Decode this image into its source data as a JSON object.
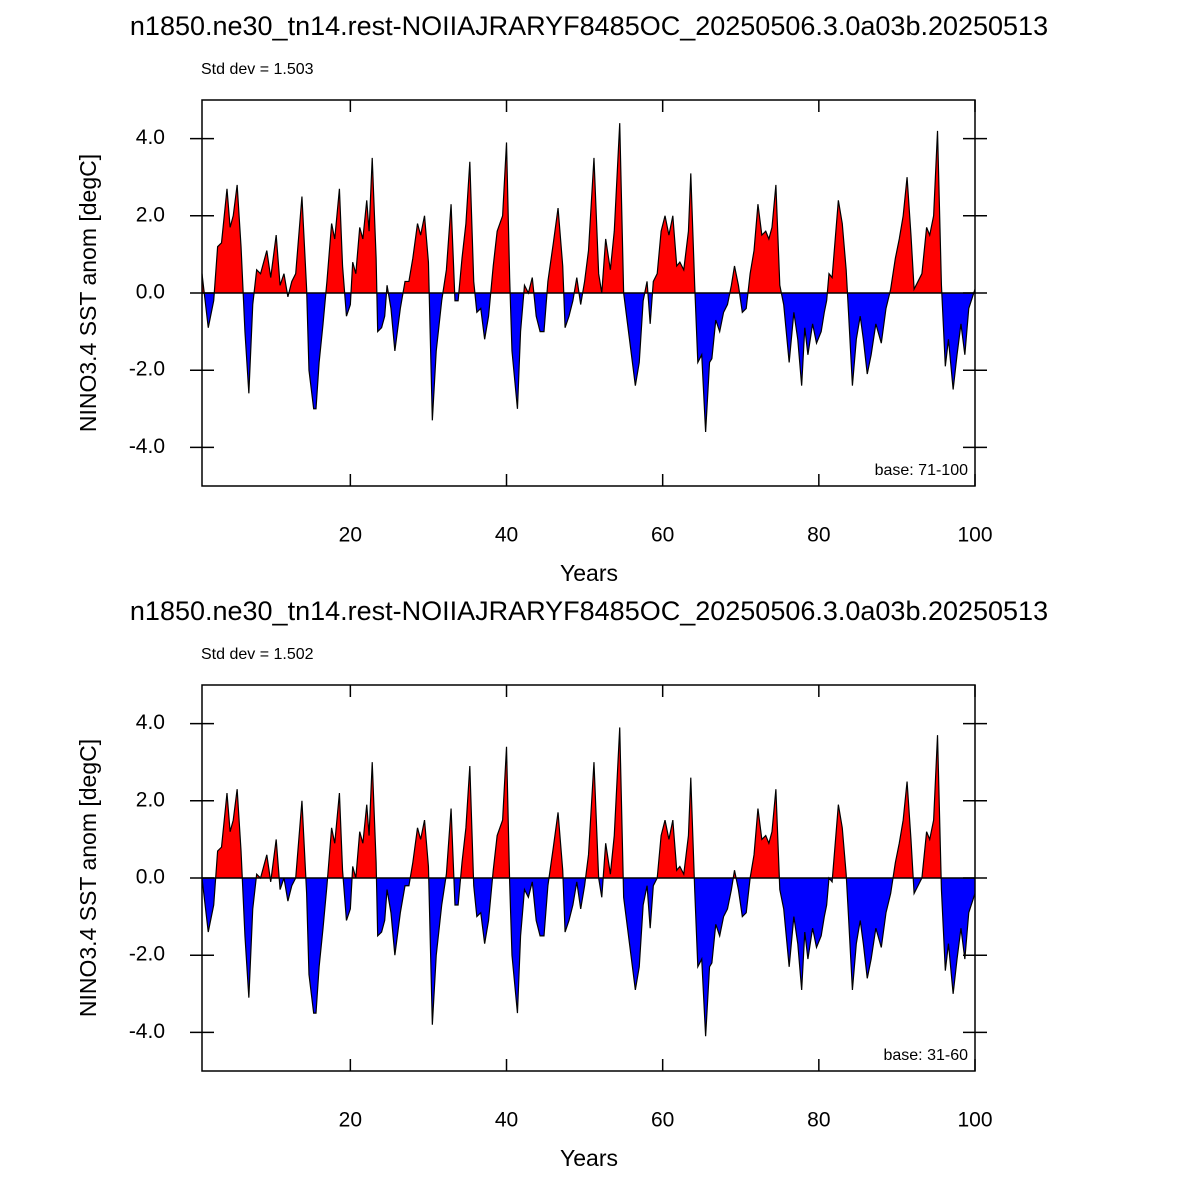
{
  "chart_data": [
    {
      "type": "area",
      "title": "n1850.ne30_tn14.rest-NOIIAJRARYF8485OC_20250506.3.0a03b.20250513",
      "subtitle": "Std dev = 1.503",
      "annotation": "base: 71-100",
      "xlabel": "Years",
      "ylabel": "NINO3.4 SST anom [degC]",
      "xlim": [
        1,
        100
      ],
      "ylim": [
        -5,
        5
      ],
      "xticks": [
        20,
        40,
        60,
        80,
        100
      ],
      "yticks": [
        {
          "value": -4,
          "label": "-4.0"
        },
        {
          "value": -2,
          "label": "-2.0"
        },
        {
          "value": 0,
          "label": "0.0"
        },
        {
          "value": 2,
          "label": "2.0"
        },
        {
          "value": 4,
          "label": "4.0"
        }
      ],
      "positive_color": "#ff0000",
      "negative_color": "#0000ff",
      "x": [
        1,
        1.8,
        2.5,
        3,
        3.5,
        4.2,
        4.6,
        5,
        5.5,
        6,
        6.5,
        7,
        7.5,
        8,
        8.5,
        9.3,
        9.8,
        10.5,
        11,
        11.5,
        12,
        12.5,
        13,
        13.8,
        14.4,
        14.7,
        15.3,
        15.6,
        16,
        16.5,
        17,
        17.6,
        18,
        18.6,
        19,
        19.5,
        20,
        20.3,
        20.7,
        21.2,
        21.6,
        22.1,
        22.4,
        22.8,
        23.3,
        23.5,
        24,
        24.4,
        24.7,
        25.2,
        25.7,
        26.4,
        27,
        27.5,
        28,
        28.6,
        29,
        29.5,
        30,
        30.5,
        31,
        31.7,
        32.3,
        32.9,
        33.4,
        33.8,
        34.3,
        34.8,
        35.3,
        35.8,
        36.2,
        36.7,
        37.2,
        37.7,
        38.3,
        38.8,
        39.5,
        40,
        40.4,
        40.7,
        41.4,
        41.8,
        42.3,
        42.8,
        43.3,
        43.8,
        44.3,
        44.8,
        45.3,
        46,
        46.6,
        47.2,
        47.5,
        48,
        48.5,
        49,
        49.5,
        50,
        50.5,
        51.2,
        51.8,
        52.2,
        52.7,
        53.3,
        53.8,
        54.5,
        55,
        55.5,
        56,
        56.5,
        57,
        57.5,
        58,
        58.4,
        58.8,
        59.3,
        59.8,
        60.3,
        60.8,
        61.3,
        61.8,
        62.2,
        62.7,
        63.3,
        63.6,
        64.1,
        64.5,
        65,
        65.5,
        66,
        66.3,
        66.8,
        67.3,
        67.8,
        68.3,
        68.8,
        69.2,
        69.7,
        70.2,
        70.7,
        71.2,
        71.7,
        72.2,
        72.7,
        73.2,
        73.6,
        74,
        74.5,
        75,
        75.5,
        76.2,
        76.8,
        77.3,
        77.8,
        78.2,
        78.6,
        79.2,
        79.7,
        80.3,
        80.7,
        81,
        81.3,
        81.7,
        82.1,
        82.5,
        83,
        83.5,
        83.8,
        84.3,
        84.8,
        85.3,
        85.7,
        86.2,
        86.7,
        87.3,
        88,
        88.6,
        89.2,
        89.8,
        90.3,
        90.8,
        91.3,
        91.8,
        92.2,
        92.7,
        93.2,
        93.8,
        94.2,
        94.7,
        95.2,
        95.7,
        96.2,
        96.6,
        97.2,
        97.7,
        98.2,
        98.7,
        99.2,
        100
      ],
      "values": [
        0.5,
        -0.9,
        -0.2,
        1.2,
        1.3,
        2.7,
        1.7,
        2.0,
        2.8,
        1.2,
        -1.0,
        -2.6,
        -0.3,
        0.6,
        0.5,
        1.1,
        0.4,
        1.5,
        0.2,
        0.5,
        -0.1,
        0.3,
        0.5,
        2.5,
        0.1,
        -2.0,
        -3.0,
        -3.0,
        -1.8,
        -0.8,
        0.3,
        1.8,
        1.4,
        2.7,
        0.7,
        -0.6,
        -0.3,
        0.8,
        0.5,
        1.7,
        1.4,
        2.4,
        1.6,
        3.5,
        0.9,
        -1.0,
        -0.9,
        -0.6,
        0.2,
        -0.4,
        -1.5,
        -0.4,
        0.3,
        0.3,
        0.9,
        1.8,
        1.5,
        2.0,
        0.8,
        -3.3,
        -1.5,
        -0.2,
        0.6,
        2.3,
        -0.2,
        -0.2,
        0.9,
        1.8,
        3.4,
        0.3,
        -0.5,
        -0.4,
        -1.2,
        -0.6,
        0.7,
        1.6,
        2.0,
        3.9,
        0.4,
        -1.5,
        -3.0,
        -1.0,
        0.2,
        0.0,
        0.4,
        -0.6,
        -1.0,
        -1.0,
        0.3,
        1.3,
        2.2,
        0.7,
        -0.9,
        -0.6,
        -0.2,
        0.4,
        -0.3,
        0.3,
        1.1,
        3.5,
        0.5,
        0.0,
        1.4,
        0.6,
        1.6,
        4.4,
        0.0,
        -0.8,
        -1.6,
        -2.4,
        -1.8,
        -0.2,
        0.3,
        -0.8,
        0.3,
        0.5,
        1.6,
        2.0,
        1.5,
        2.0,
        0.7,
        0.8,
        0.6,
        1.6,
        3.1,
        0.2,
        -1.8,
        -1.6,
        -3.6,
        -1.8,
        -1.7,
        -0.7,
        -1.0,
        -0.5,
        -0.3,
        0.2,
        0.7,
        0.2,
        -0.5,
        -0.4,
        0.5,
        1.1,
        2.3,
        1.5,
        1.6,
        1.4,
        1.7,
        2.8,
        0.2,
        -0.3,
        -1.8,
        -0.5,
        -1.2,
        -2.4,
        -0.9,
        -1.6,
        -0.8,
        -1.3,
        -1.0,
        -0.5,
        -0.2,
        0.5,
        0.4,
        1.4,
        2.4,
        1.8,
        0.6,
        -0.5,
        -2.4,
        -1.2,
        -0.6,
        -1.2,
        -2.1,
        -1.6,
        -0.8,
        -1.3,
        -0.4,
        0.1,
        0.9,
        1.4,
        2.0,
        3.0,
        1.5,
        0.1,
        0.3,
        0.5,
        1.7,
        1.5,
        2.0,
        4.2,
        0.2,
        -1.9,
        -1.2,
        -2.5,
        -1.6,
        -0.8,
        -1.6,
        -0.4,
        0.1
      ]
    },
    {
      "type": "area",
      "title": "n1850.ne30_tn14.rest-NOIIAJRARYF8485OC_20250506.3.0a03b.20250513",
      "subtitle": "Std dev = 1.502",
      "annotation": "base: 31-60",
      "xlabel": "Years",
      "ylabel": "NINO3.4 SST anom [degC]",
      "xlim": [
        1,
        100
      ],
      "ylim": [
        -5,
        5
      ],
      "xticks": [
        20,
        40,
        60,
        80,
        100
      ],
      "yticks": [
        {
          "value": -4,
          "label": "-4.0"
        },
        {
          "value": -2,
          "label": "-2.0"
        },
        {
          "value": 0,
          "label": "0.0"
        },
        {
          "value": 2,
          "label": "2.0"
        },
        {
          "value": 4,
          "label": "4.0"
        }
      ],
      "positive_color": "#ff0000",
      "negative_color": "#0000ff",
      "x": [
        1,
        1.8,
        2.5,
        3,
        3.5,
        4.2,
        4.6,
        5,
        5.5,
        6,
        6.5,
        7,
        7.5,
        8,
        8.5,
        9.3,
        9.8,
        10.5,
        11,
        11.5,
        12,
        12.5,
        13,
        13.8,
        14.4,
        14.7,
        15.3,
        15.6,
        16,
        16.5,
        17,
        17.6,
        18,
        18.6,
        19,
        19.5,
        20,
        20.3,
        20.7,
        21.2,
        21.6,
        22.1,
        22.4,
        22.8,
        23.3,
        23.5,
        24,
        24.4,
        24.7,
        25.2,
        25.7,
        26.4,
        27,
        27.5,
        28,
        28.6,
        29,
        29.5,
        30,
        30.5,
        31,
        31.7,
        32.3,
        32.9,
        33.4,
        33.8,
        34.3,
        34.8,
        35.3,
        35.8,
        36.2,
        36.7,
        37.2,
        37.7,
        38.3,
        38.8,
        39.5,
        40,
        40.4,
        40.7,
        41.4,
        41.8,
        42.3,
        42.8,
        43.3,
        43.8,
        44.3,
        44.8,
        45.3,
        46,
        46.6,
        47.2,
        47.5,
        48,
        48.5,
        49,
        49.5,
        50,
        50.5,
        51.2,
        51.8,
        52.2,
        52.7,
        53.3,
        53.8,
        54.5,
        55,
        55.5,
        56,
        56.5,
        57,
        57.5,
        58,
        58.4,
        58.8,
        59.3,
        59.8,
        60.3,
        60.8,
        61.3,
        61.8,
        62.2,
        62.7,
        63.3,
        63.6,
        64.1,
        64.5,
        65,
        65.5,
        66,
        66.3,
        66.8,
        67.3,
        67.8,
        68.3,
        68.8,
        69.2,
        69.7,
        70.2,
        70.7,
        71.2,
        71.7,
        72.2,
        72.7,
        73.2,
        73.6,
        74,
        74.5,
        75,
        75.5,
        76.2,
        76.8,
        77.3,
        77.8,
        78.2,
        78.6,
        79.2,
        79.7,
        80.3,
        80.7,
        81,
        81.3,
        81.7,
        82.1,
        82.5,
        83,
        83.5,
        83.8,
        84.3,
        84.8,
        85.3,
        85.7,
        86.2,
        86.7,
        87.3,
        88,
        88.6,
        89.2,
        89.8,
        90.3,
        90.8,
        91.3,
        91.8,
        92.2,
        92.7,
        93.2,
        93.8,
        94.2,
        94.7,
        95.2,
        95.7,
        96.2,
        96.6,
        97.2,
        97.7,
        98.2,
        98.7,
        99.2,
        100
      ],
      "values": [
        0.0,
        -1.4,
        -0.7,
        0.7,
        0.8,
        2.2,
        1.2,
        1.5,
        2.3,
        0.7,
        -1.5,
        -3.1,
        -0.8,
        0.1,
        0.0,
        0.6,
        -0.1,
        1.0,
        -0.3,
        0.0,
        -0.6,
        -0.2,
        0.0,
        2.0,
        -0.4,
        -2.5,
        -3.5,
        -3.5,
        -2.3,
        -1.3,
        -0.2,
        1.3,
        0.9,
        2.2,
        0.2,
        -1.1,
        -0.8,
        0.3,
        0.0,
        1.2,
        0.9,
        1.9,
        1.1,
        3.0,
        0.4,
        -1.5,
        -1.4,
        -1.1,
        -0.3,
        -0.9,
        -2.0,
        -0.9,
        -0.2,
        -0.2,
        0.4,
        1.3,
        1.0,
        1.5,
        0.3,
        -3.8,
        -2.0,
        -0.7,
        0.1,
        1.8,
        -0.7,
        -0.7,
        0.4,
        1.3,
        2.9,
        -0.2,
        -1.0,
        -0.9,
        -1.7,
        -1.1,
        0.2,
        1.1,
        1.5,
        3.4,
        -0.1,
        -2.0,
        -3.5,
        -1.5,
        -0.3,
        -0.5,
        -0.1,
        -1.1,
        -1.5,
        -1.5,
        -0.2,
        0.8,
        1.7,
        0.2,
        -1.4,
        -1.1,
        -0.7,
        -0.1,
        -0.8,
        -0.2,
        0.6,
        3.0,
        0.0,
        -0.5,
        0.9,
        0.1,
        1.1,
        3.9,
        -0.5,
        -1.3,
        -2.1,
        -2.9,
        -2.3,
        -0.7,
        -0.2,
        -1.3,
        -0.2,
        0.0,
        1.1,
        1.5,
        1.0,
        1.5,
        0.2,
        0.3,
        0.1,
        1.1,
        2.6,
        -0.3,
        -2.3,
        -2.1,
        -4.1,
        -2.3,
        -2.2,
        -1.2,
        -1.5,
        -1.0,
        -0.8,
        -0.3,
        0.2,
        -0.3,
        -1.0,
        -0.9,
        0.0,
        0.6,
        1.8,
        1.0,
        1.1,
        0.9,
        1.2,
        2.3,
        -0.3,
        -0.8,
        -2.3,
        -1.0,
        -1.7,
        -2.9,
        -1.4,
        -2.1,
        -1.3,
        -1.8,
        -1.5,
        -1.0,
        -0.7,
        0.0,
        -0.1,
        0.9,
        1.9,
        1.3,
        0.1,
        -1.0,
        -2.9,
        -1.7,
        -1.1,
        -1.7,
        -2.6,
        -2.1,
        -1.3,
        -1.8,
        -0.9,
        -0.4,
        0.4,
        0.9,
        1.5,
        2.5,
        1.0,
        -0.4,
        -0.2,
        0.0,
        1.2,
        1.0,
        1.5,
        3.7,
        -0.3,
        -2.4,
        -1.7,
        -3.0,
        -2.1,
        -1.3,
        -2.1,
        -0.9,
        -0.4
      ]
    }
  ]
}
